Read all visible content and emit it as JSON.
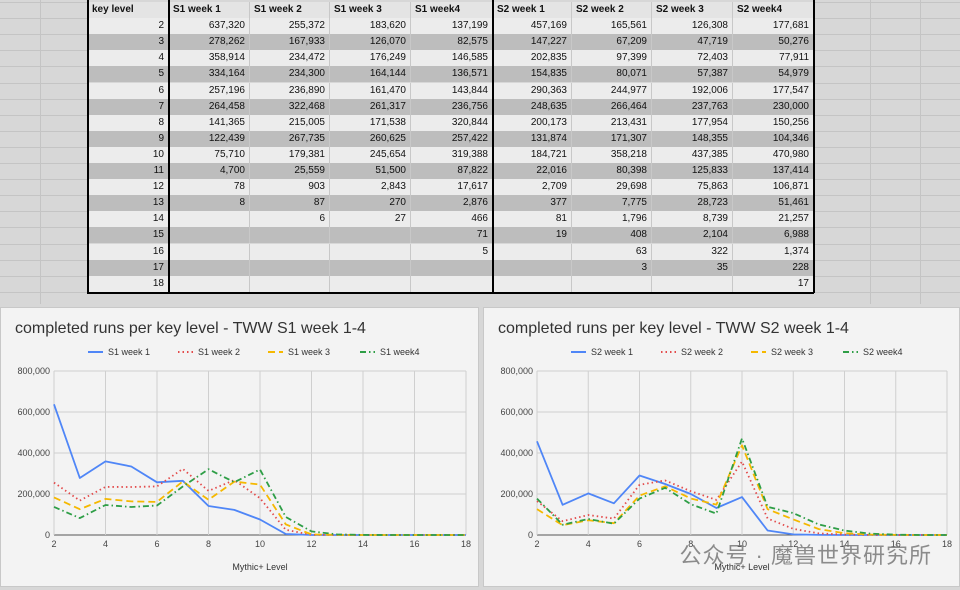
{
  "table": {
    "headers": [
      "key level",
      "S1 week 1",
      "S1 week 2",
      "S1 week 3",
      "S1 week4",
      "S2 week 1",
      "S2 week 2",
      "S2 week 3",
      "S2 week4"
    ],
    "rows": [
      [
        "2",
        "637,320",
        "255,372",
        "183,620",
        "137,199",
        "457,169",
        "165,561",
        "126,308",
        "177,681"
      ],
      [
        "3",
        "278,262",
        "167,933",
        "126,070",
        "82,575",
        "147,227",
        "67,209",
        "47,719",
        "50,276"
      ],
      [
        "4",
        "358,914",
        "234,472",
        "176,249",
        "146,585",
        "202,835",
        "97,399",
        "72,403",
        "77,911"
      ],
      [
        "5",
        "334,164",
        "234,300",
        "164,144",
        "136,571",
        "154,835",
        "80,071",
        "57,387",
        "54,979"
      ],
      [
        "6",
        "257,196",
        "236,890",
        "161,470",
        "143,844",
        "290,363",
        "244,977",
        "192,006",
        "177,547"
      ],
      [
        "7",
        "264,458",
        "322,468",
        "261,317",
        "236,756",
        "248,635",
        "266,464",
        "237,763",
        "230,000"
      ],
      [
        "8",
        "141,365",
        "215,005",
        "171,538",
        "320,844",
        "200,173",
        "213,431",
        "177,954",
        "150,256"
      ],
      [
        "9",
        "122,439",
        "267,735",
        "260,625",
        "257,422",
        "131,874",
        "171,307",
        "148,355",
        "104,346"
      ],
      [
        "10",
        "75,710",
        "179,381",
        "245,654",
        "319,388",
        "184,721",
        "358,218",
        "437,385",
        "470,980"
      ],
      [
        "11",
        "4,700",
        "25,559",
        "51,500",
        "87,822",
        "22,016",
        "80,398",
        "125,833",
        "137,414"
      ],
      [
        "12",
        "78",
        "903",
        "2,843",
        "17,617",
        "2,709",
        "29,698",
        "75,863",
        "106,871"
      ],
      [
        "13",
        "8",
        "87",
        "270",
        "2,876",
        "377",
        "7,775",
        "28,723",
        "51,461"
      ],
      [
        "14",
        "",
        "6",
        "27",
        "466",
        "81",
        "1,796",
        "8,739",
        "21,257"
      ],
      [
        "15",
        "",
        "",
        "",
        "71",
        "19",
        "408",
        "2,104",
        "6,988"
      ],
      [
        "16",
        "",
        "",
        "",
        "5",
        "",
        "63",
        "322",
        "1,374"
      ],
      [
        "17",
        "",
        "",
        "",
        "",
        "",
        "3",
        "35",
        "228"
      ],
      [
        "18",
        "",
        "",
        "",
        "",
        "",
        "",
        "",
        "17"
      ]
    ]
  },
  "chart_data": [
    {
      "type": "line",
      "title": "completed runs per key level - TWW S1 week 1-4",
      "xlabel": "Mythic+ Level",
      "ylabel": "",
      "xlim": [
        2,
        18
      ],
      "ylim": [
        0,
        800000
      ],
      "xticks": [
        "2",
        "4",
        "6",
        "8",
        "10",
        "12",
        "14",
        "16",
        "18"
      ],
      "yticks": [
        "0",
        "200,000",
        "400,000",
        "600,000",
        "800,000"
      ],
      "x": [
        2,
        3,
        4,
        5,
        6,
        7,
        8,
        9,
        10,
        11,
        12,
        13,
        14,
        15,
        16,
        17,
        18
      ],
      "series": [
        {
          "name": "S1 week 1",
          "color": "#4f86f7",
          "dash": "",
          "values": [
            637320,
            278262,
            358914,
            334164,
            257196,
            264458,
            141365,
            122439,
            75710,
            4700,
            78,
            8,
            0,
            0,
            0,
            0,
            0
          ]
        },
        {
          "name": "S1 week 2",
          "color": "#e34b4b",
          "dash": "1.5,3",
          "values": [
            255372,
            167933,
            234472,
            234300,
            236890,
            322468,
            215005,
            267735,
            179381,
            25559,
            903,
            87,
            6,
            0,
            0,
            0,
            0
          ]
        },
        {
          "name": "S1 week 3",
          "color": "#f5b800",
          "dash": "7,4",
          "values": [
            183620,
            126070,
            176249,
            164144,
            161470,
            261317,
            171538,
            260625,
            245654,
            51500,
            2843,
            270,
            27,
            0,
            0,
            0,
            0
          ]
        },
        {
          "name": "S1 week4",
          "color": "#2e9e46",
          "dash": "6,3,1.5,3",
          "values": [
            137199,
            82575,
            146585,
            136571,
            143844,
            236756,
            320844,
            257422,
            319388,
            87822,
            17617,
            2876,
            466,
            71,
            5,
            0,
            0
          ]
        }
      ]
    },
    {
      "type": "line",
      "title": "completed runs per key level - TWW S2 week 1-4",
      "xlabel": "Mythic+ Level",
      "ylabel": "",
      "xlim": [
        2,
        18
      ],
      "ylim": [
        0,
        800000
      ],
      "xticks": [
        "2",
        "4",
        "6",
        "8",
        "10",
        "12",
        "14",
        "16",
        "18"
      ],
      "yticks": [
        "0",
        "200,000",
        "400,000",
        "600,000",
        "800,000"
      ],
      "x": [
        2,
        3,
        4,
        5,
        6,
        7,
        8,
        9,
        10,
        11,
        12,
        13,
        14,
        15,
        16,
        17,
        18
      ],
      "series": [
        {
          "name": "S2 week 1",
          "color": "#4f86f7",
          "dash": "",
          "values": [
            457169,
            147227,
            202835,
            154835,
            290363,
            248635,
            200173,
            131874,
            184721,
            22016,
            2709,
            377,
            81,
            19,
            0,
            0,
            0
          ]
        },
        {
          "name": "S2 week 2",
          "color": "#e34b4b",
          "dash": "1.5,3",
          "values": [
            165561,
            67209,
            97399,
            80071,
            244977,
            266464,
            213431,
            171307,
            358218,
            80398,
            29698,
            7775,
            1796,
            408,
            63,
            3,
            0
          ]
        },
        {
          "name": "S2 week 3",
          "color": "#f5b800",
          "dash": "7,4",
          "values": [
            126308,
            47719,
            72403,
            57387,
            192006,
            237763,
            177954,
            148355,
            437385,
            125833,
            75863,
            28723,
            8739,
            2104,
            322,
            35,
            0
          ]
        },
        {
          "name": "S2 week4",
          "color": "#2e9e46",
          "dash": "6,3,1.5,3",
          "values": [
            177681,
            50276,
            77911,
            54979,
            177547,
            230000,
            150256,
            104346,
            470980,
            137414,
            106871,
            51461,
            21257,
            6988,
            1374,
            228,
            17
          ]
        }
      ]
    }
  ],
  "watermark": "公众号 · 魔兽世界研究所"
}
